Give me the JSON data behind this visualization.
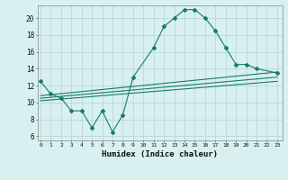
{
  "line1_x": [
    0,
    1,
    2,
    3,
    4,
    5,
    6,
    7,
    8,
    9,
    11,
    12,
    13,
    14,
    15,
    16,
    17,
    18,
    19,
    20,
    21,
    23
  ],
  "line1_y": [
    12.5,
    11.0,
    10.5,
    9.0,
    9.0,
    7.0,
    9.0,
    6.5,
    8.5,
    13.0,
    16.5,
    19.0,
    20.0,
    21.0,
    21.0,
    20.0,
    18.5,
    16.5,
    14.5,
    14.5,
    14.0,
    13.5
  ],
  "line2_x": [
    0,
    23
  ],
  "line2_y": [
    10.5,
    13.0
  ],
  "line3_x": [
    0,
    23
  ],
  "line3_y": [
    10.2,
    12.5
  ],
  "line4_x": [
    0,
    23
  ],
  "line4_y": [
    10.8,
    13.6
  ],
  "color": "#1a7a6e",
  "bg_color": "#d8f0f0",
  "grid_color": "#b8d8d8",
  "xlabel": "Humidex (Indice chaleur)",
  "xticks": [
    0,
    1,
    2,
    3,
    4,
    5,
    6,
    7,
    8,
    9,
    10,
    11,
    12,
    13,
    14,
    15,
    16,
    17,
    18,
    19,
    20,
    21,
    22,
    23
  ],
  "yticks": [
    6,
    8,
    10,
    12,
    14,
    16,
    18,
    20
  ],
  "xlim": [
    -0.3,
    23.5
  ],
  "ylim": [
    5.5,
    21.5
  ]
}
